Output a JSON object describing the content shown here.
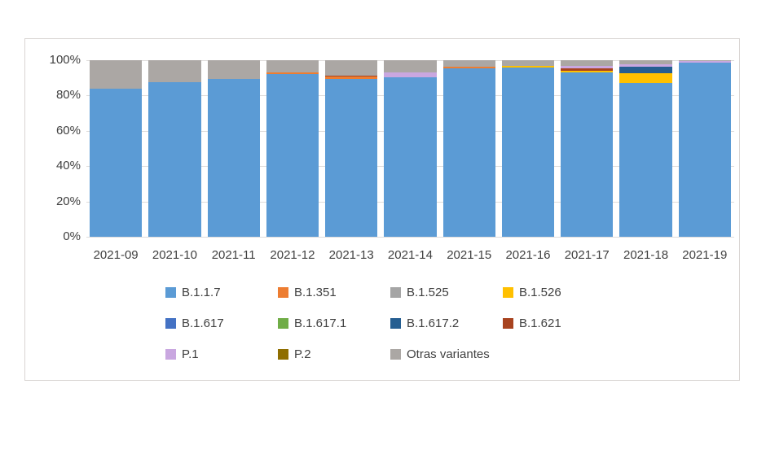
{
  "page": {
    "background": "#ffffff"
  },
  "chart": {
    "frame_border_color": "#d9d5d3",
    "gridline_color": "#dedcdb",
    "text_color": "#404040"
  },
  "chart_data": {
    "type": "bar",
    "stacked": true,
    "grid": true,
    "legend_position": "bottom",
    "ylim": [
      0,
      100
    ],
    "yticks": [
      "0%",
      "20%",
      "40%",
      "60%",
      "80%",
      "100%"
    ],
    "categories": [
      "2021-09",
      "2021-10",
      "2021-11",
      "2021-12",
      "2021-13",
      "2021-14",
      "2021-15",
      "2021-16",
      "2021-17",
      "2021-18",
      "2021-19"
    ],
    "series": [
      {
        "name": "B.1.1.7",
        "color": "#5B9BD5",
        "values": [
          84,
          87.5,
          89.5,
          92,
          89.5,
          90.5,
          95.5,
          96,
          93,
          87,
          98.5
        ]
      },
      {
        "name": "B.1.351",
        "color": "#ED7D31",
        "values": [
          0,
          0,
          0,
          1,
          1.2,
          0,
          1,
          0,
          0,
          0,
          0
        ]
      },
      {
        "name": "B.1.525",
        "color": "#A5A5A5",
        "values": [
          0,
          0,
          0,
          0,
          0,
          0,
          0,
          0,
          0,
          0,
          0
        ]
      },
      {
        "name": "B.1.526",
        "color": "#FFC000",
        "values": [
          0,
          0,
          0,
          0,
          0,
          0,
          0,
          0.8,
          1,
          5.6,
          0
        ]
      },
      {
        "name": "B.1.617",
        "color": "#4472C4",
        "values": [
          0,
          0,
          0,
          0,
          0,
          0,
          0,
          0,
          0,
          0,
          0
        ]
      },
      {
        "name": "B.1.617.1",
        "color": "#70AD47",
        "values": [
          0,
          0,
          0,
          0,
          0,
          0,
          0,
          0,
          0,
          0,
          0
        ]
      },
      {
        "name": "B.1.617.2",
        "color": "#255E91",
        "values": [
          0,
          0,
          0,
          0,
          0,
          0,
          0,
          0,
          0,
          3.5,
          0
        ]
      },
      {
        "name": "B.1.621",
        "color": "#A8431F",
        "values": [
          0,
          0,
          0,
          0,
          0.5,
          0,
          0,
          0,
          1.2,
          0,
          0
        ]
      },
      {
        "name": "P.1",
        "color": "#C9A7E0",
        "values": [
          0,
          0,
          0,
          0,
          0,
          2.5,
          0,
          0,
          1.5,
          1.6,
          1
        ]
      },
      {
        "name": "P.2",
        "color": "#8F6E00",
        "values": [
          0,
          0,
          0,
          0,
          0,
          0,
          0,
          0,
          0,
          0,
          0
        ]
      },
      {
        "name": "Otras variantes",
        "color": "#ABA7A4",
        "values": [
          16,
          12.5,
          10.5,
          7,
          8.8,
          7,
          3.5,
          3.2,
          3.3,
          2.3,
          0.5
        ]
      }
    ]
  }
}
